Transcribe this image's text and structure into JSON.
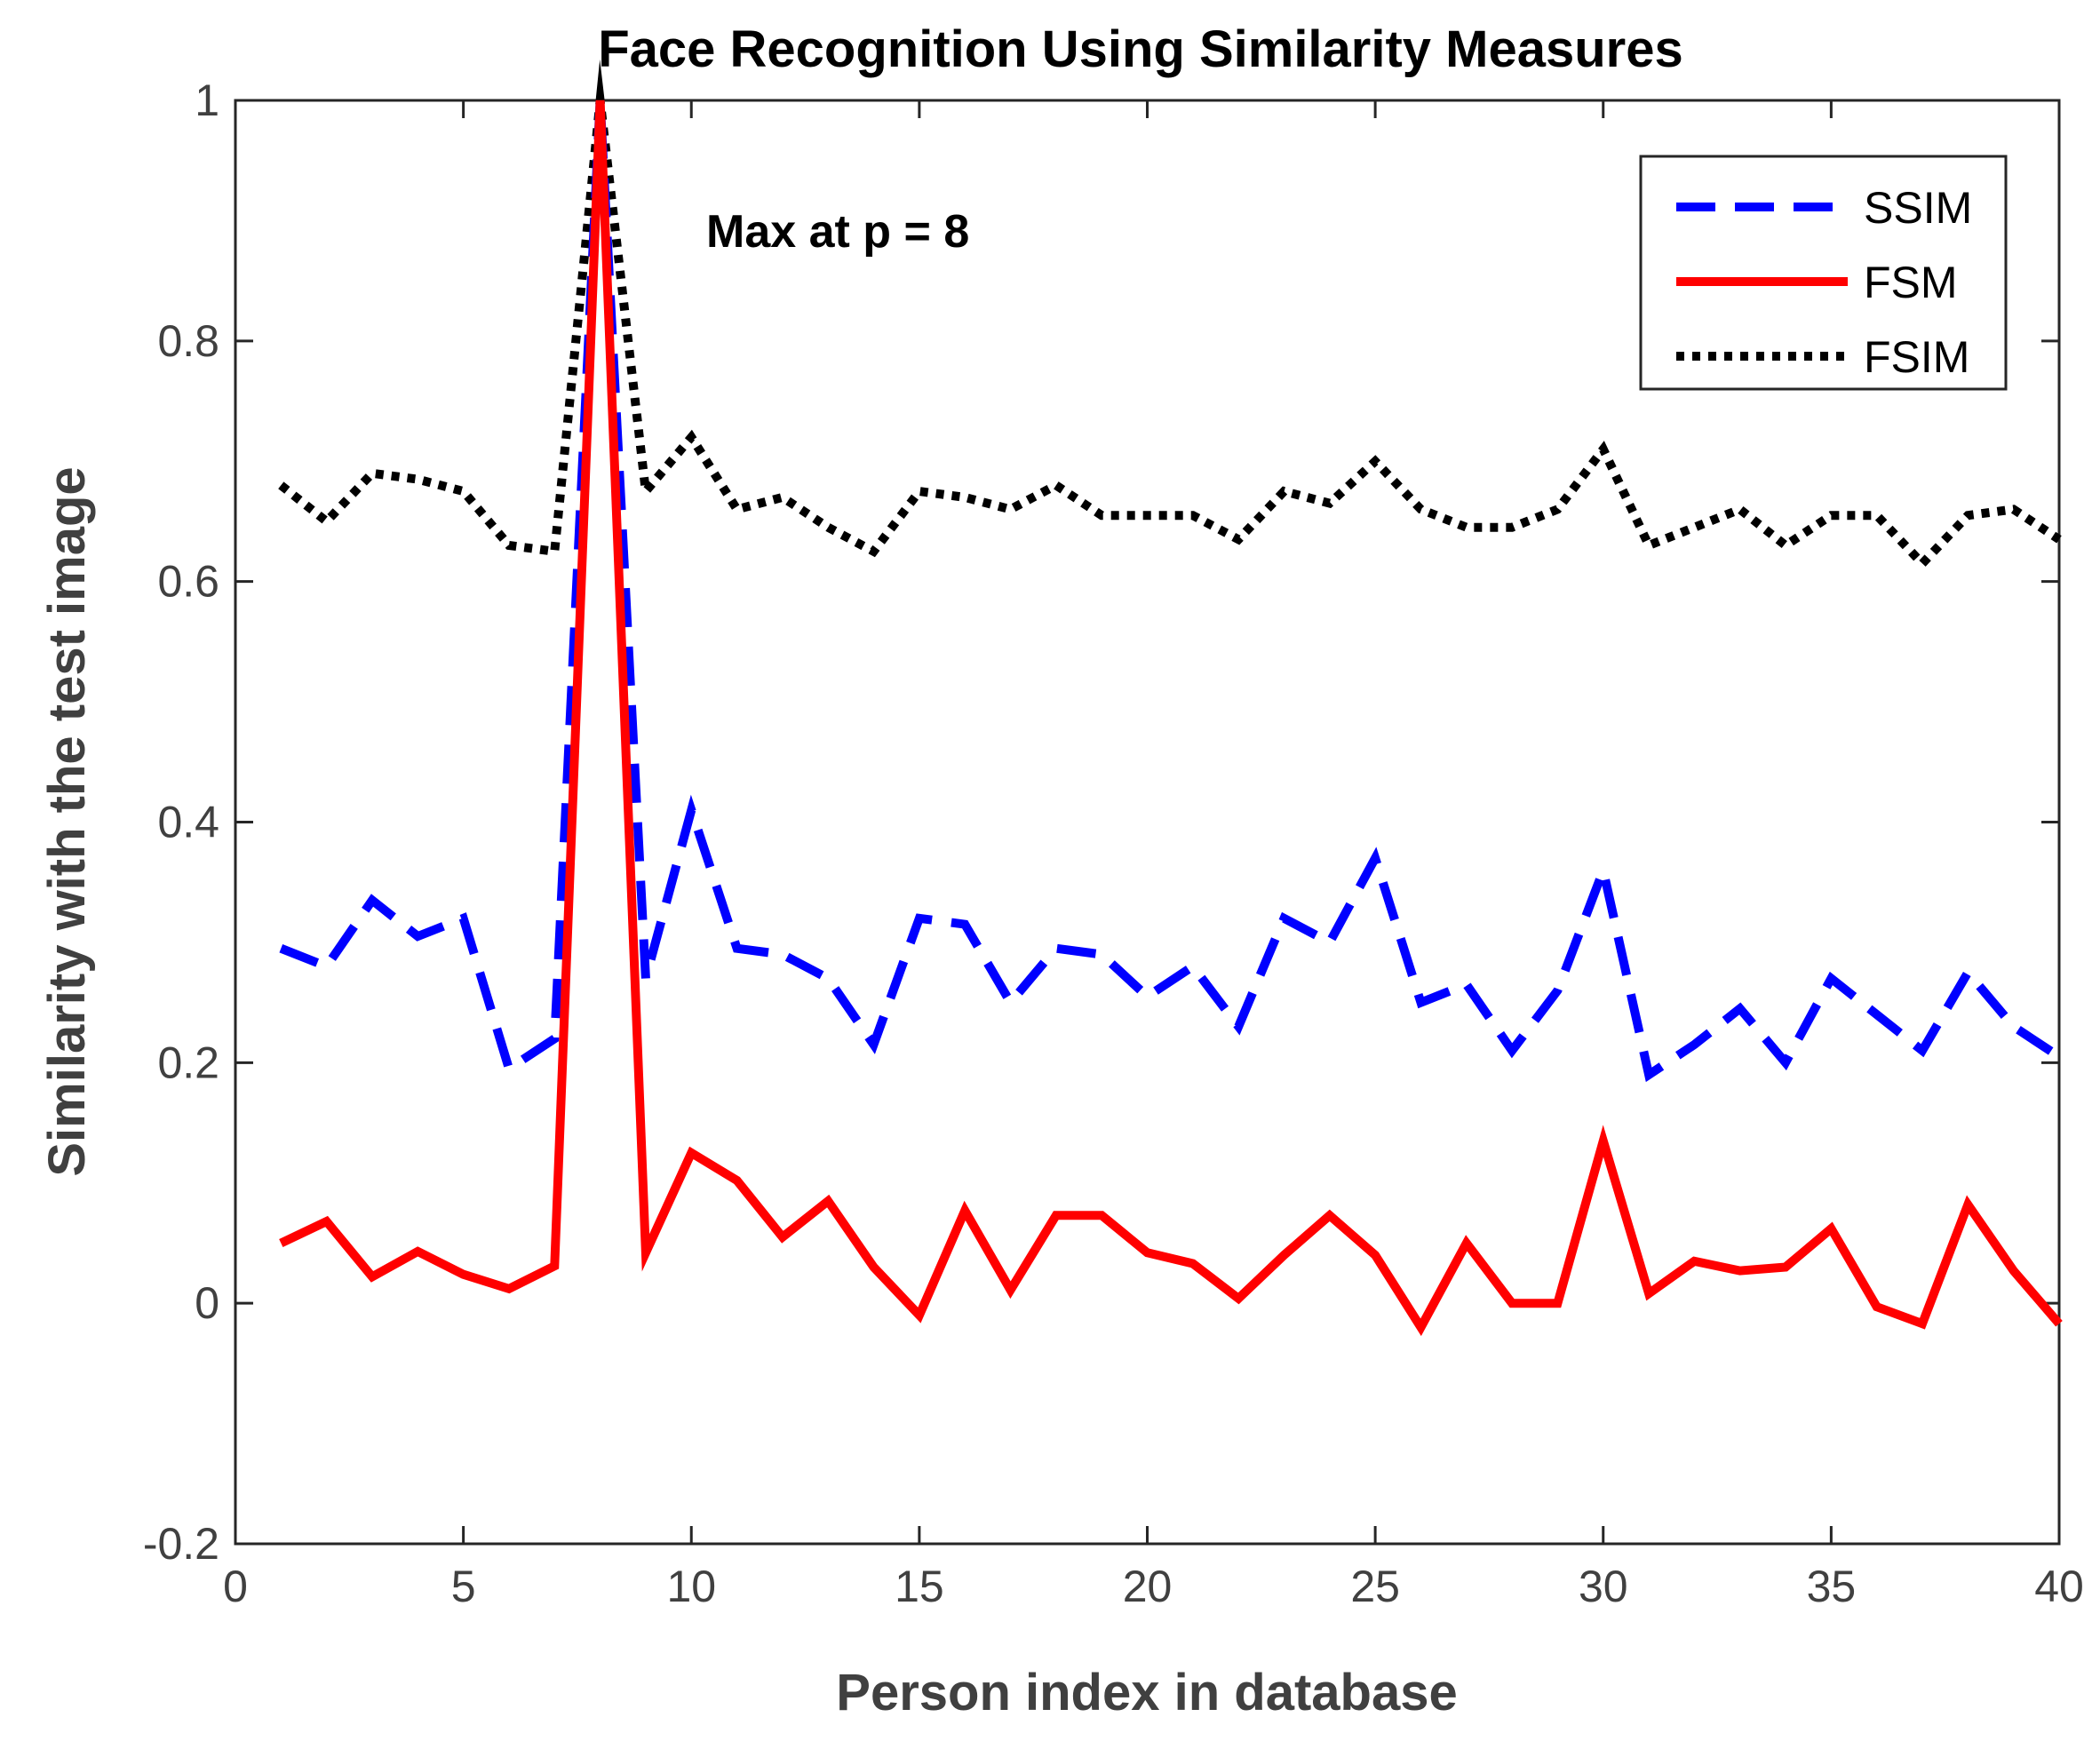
{
  "chart_data": {
    "type": "line",
    "title": "Face Recognition Using Similarity Measures",
    "xlabel": "Person index in database",
    "ylabel": "Similarity with the test image",
    "xlim": [
      0,
      40
    ],
    "ylim": [
      -0.2,
      1
    ],
    "xticks": [
      0,
      5,
      10,
      15,
      20,
      25,
      30,
      35,
      40
    ],
    "yticks": [
      -0.2,
      0,
      0.2,
      0.4,
      0.6,
      0.8,
      1
    ],
    "xtick_labels": [
      "0",
      "5",
      "10",
      "15",
      "20",
      "25",
      "30",
      "35",
      "40"
    ],
    "ytick_labels": [
      "-0.2",
      "0",
      "0.2",
      "0.4",
      "0.6",
      "0.8",
      "1"
    ],
    "grid": false,
    "legend_position": "top-right",
    "annotation": "Max at p = 8",
    "x": [
      1,
      2,
      3,
      4,
      5,
      6,
      7,
      8,
      9,
      10,
      11,
      12,
      13,
      14,
      15,
      16,
      17,
      18,
      19,
      20,
      21,
      22,
      23,
      24,
      25,
      26,
      27,
      28,
      29,
      30,
      31,
      32,
      33,
      34,
      35,
      36,
      37,
      38,
      39,
      40
    ],
    "series": [
      {
        "name": "SSIM",
        "color": "#0000ff",
        "style": "dashed",
        "values": [
          0.295,
          0.28,
          0.335,
          0.305,
          0.32,
          0.195,
          0.22,
          1.0,
          0.27,
          0.41,
          0.295,
          0.29,
          0.27,
          0.215,
          0.32,
          0.315,
          0.25,
          0.295,
          0.29,
          0.255,
          0.28,
          0.23,
          0.32,
          0.3,
          0.37,
          0.25,
          0.265,
          0.21,
          0.26,
          0.36,
          0.19,
          0.215,
          0.245,
          0.2,
          0.27,
          0.24,
          0.21,
          0.275,
          0.23,
          0.205
        ]
      },
      {
        "name": "FSM",
        "color": "#ff0000",
        "style": "solid",
        "values": [
          0.05,
          0.068,
          0.022,
          0.043,
          0.024,
          0.012,
          0.031,
          1.0,
          0.042,
          0.125,
          0.102,
          0.055,
          0.085,
          0.03,
          -0.01,
          0.077,
          0.011,
          0.073,
          0.073,
          0.042,
          0.033,
          0.004,
          0.04,
          0.073,
          0.04,
          -0.02,
          0.05,
          0.0,
          0.0,
          0.135,
          0.008,
          0.035,
          0.027,
          0.03,
          0.062,
          -0.003,
          -0.017,
          0.082,
          0.027,
          -0.017
        ]
      },
      {
        "name": "FSIM",
        "color": "#000000",
        "style": "dotted",
        "values": [
          0.68,
          0.65,
          0.69,
          0.685,
          0.675,
          0.63,
          0.625,
          1.0,
          0.675,
          0.72,
          0.66,
          0.67,
          0.645,
          0.625,
          0.675,
          0.67,
          0.66,
          0.68,
          0.655,
          0.655,
          0.655,
          0.635,
          0.675,
          0.665,
          0.7,
          0.66,
          0.645,
          0.645,
          0.66,
          0.71,
          0.63,
          0.645,
          0.66,
          0.63,
          0.655,
          0.655,
          0.615,
          0.655,
          0.66,
          0.635
        ]
      }
    ]
  }
}
